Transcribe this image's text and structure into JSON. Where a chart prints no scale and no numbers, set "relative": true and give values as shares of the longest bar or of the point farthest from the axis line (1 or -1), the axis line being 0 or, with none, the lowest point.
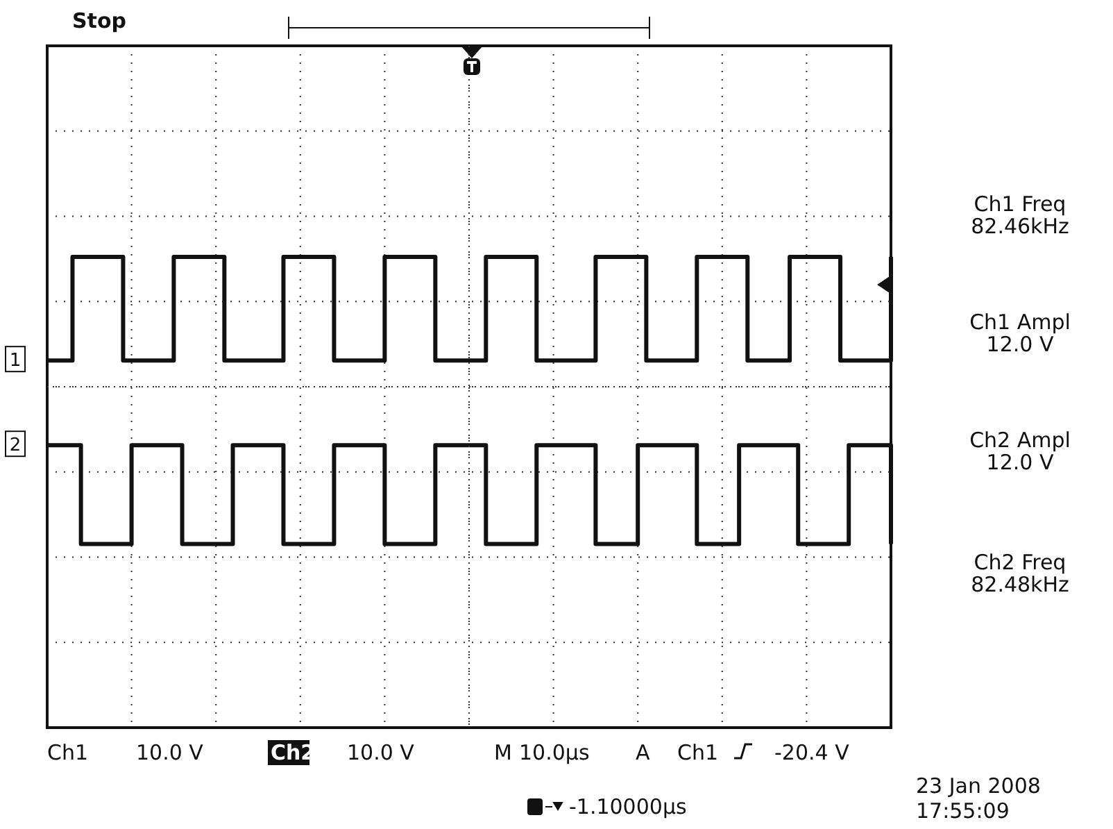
{
  "chart_data": {
    "type": "step",
    "relative": true,
    "grid": true,
    "marker": "none",
    "categories": [
      null,
      null,
      null,
      null,
      null,
      null,
      null,
      null,
      null,
      null,
      null,
      null,
      null,
      null,
      null,
      null,
      null,
      null,
      null,
      null,
      null,
      null,
      null,
      null,
      null,
      null,
      null,
      null,
      null,
      null,
      null,
      null,
      null,
      null,
      null,
      null,
      null,
      null,
      null,
      null,
      null,
      null,
      null,
      null,
      null,
      null,
      null,
      null,
      null,
      null,
      null,
      null,
      null,
      null,
      null,
      null,
      null,
      null,
      null,
      null,
      null,
      null,
      null,
      null,
      null,
      null,
      null,
      null,
      null,
      null,
      null,
      null,
      null,
      null,
      null,
      null,
      null,
      null,
      null,
      null,
      null,
      null,
      null,
      null,
      null,
      null,
      null,
      null,
      null,
      null,
      null,
      null,
      null,
      null,
      null,
      null,
      null,
      null,
      null,
      null,
      null
    ],
    "series": [
      {
        "name": "1",
        "color": "#111111",
        "values": [
          0.78,
          0.78,
          0.78,
          1,
          1,
          1,
          1,
          1,
          1,
          0.78,
          0.78,
          0.78,
          0.78,
          0.78,
          0.78,
          1,
          1,
          1,
          1,
          1,
          1,
          0.78,
          0.78,
          0.78,
          0.78,
          0.78,
          0.78,
          0.78,
          1,
          1,
          1,
          1,
          1,
          1,
          0.78,
          0.78,
          0.78,
          0.78,
          0.78,
          0.78,
          1,
          1,
          1,
          1,
          1,
          1,
          0.78,
          0.78,
          0.78,
          0.78,
          0.78,
          0.78,
          1,
          1,
          1,
          1,
          1,
          1,
          0.78,
          0.78,
          0.78,
          0.78,
          0.78,
          0.78,
          0.78,
          1,
          1,
          1,
          1,
          1,
          1,
          0.78,
          0.78,
          0.78,
          0.78,
          0.78,
          0.78,
          1,
          1,
          1,
          1,
          1,
          1,
          0.78,
          0.78,
          0.78,
          0.78,
          0.78,
          1,
          1,
          1,
          1,
          1,
          1,
          0.78,
          0.78,
          0.78,
          0.78,
          0.78,
          0.78,
          1
        ]
      },
      {
        "name": "2",
        "color": "#111111",
        "values": [
          0.6,
          0.6,
          0.6,
          0.6,
          0.39,
          0.39,
          0.39,
          0.39,
          0.39,
          0.39,
          0.6,
          0.6,
          0.6,
          0.6,
          0.6,
          0.6,
          0.39,
          0.39,
          0.39,
          0.39,
          0.39,
          0.39,
          0.6,
          0.6,
          0.6,
          0.6,
          0.6,
          0.6,
          0.39,
          0.39,
          0.39,
          0.39,
          0.39,
          0.39,
          0.6,
          0.6,
          0.6,
          0.6,
          0.6,
          0.6,
          0.39,
          0.39,
          0.39,
          0.39,
          0.39,
          0.39,
          0.6,
          0.6,
          0.6,
          0.6,
          0.6,
          0.6,
          0.39,
          0.39,
          0.39,
          0.39,
          0.39,
          0.39,
          0.6,
          0.6,
          0.6,
          0.6,
          0.6,
          0.6,
          0.6,
          0.39,
          0.39,
          0.39,
          0.39,
          0.39,
          0.6,
          0.6,
          0.6,
          0.6,
          0.6,
          0.6,
          0.6,
          0.39,
          0.39,
          0.39,
          0.39,
          0.39,
          0.6,
          0.6,
          0.6,
          0.6,
          0.6,
          0.6,
          0.6,
          0.39,
          0.39,
          0.39,
          0.39,
          0.39,
          0.39,
          0.6,
          0.6,
          0.6,
          0.6,
          0.6,
          0.39
        ]
      }
    ],
    "annotations": [
      "Stop",
      "Ch1 Freq",
      "82.46kHz",
      "Ch1 Ampl",
      "12.0 V",
      "Ch2 Ampl",
      "12.0 V",
      "Ch2 Freq",
      "82.48kHz",
      "Ch1",
      "10.0 V",
      "Ch2",
      "10.0 V",
      "M",
      "10.0µs",
      "A",
      "Ch1",
      "-20.4 V",
      "-1.10000µs",
      "23 Jan 2008",
      "17:55:09"
    ]
  }
}
